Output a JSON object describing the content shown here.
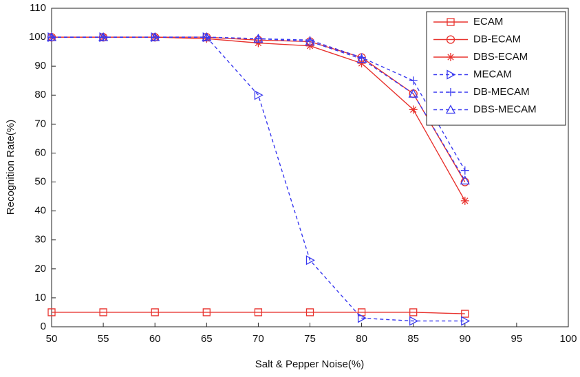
{
  "chart_data": {
    "type": "line",
    "x_label": "Salt & Pepper Noise(%)",
    "y_label": "Recognition Rate(%)",
    "x": [
      50,
      55,
      60,
      65,
      70,
      75,
      80,
      85,
      90
    ],
    "xlim": [
      50,
      100
    ],
    "xticks": [
      50,
      55,
      60,
      65,
      70,
      75,
      80,
      85,
      90,
      95,
      100
    ],
    "ylim": [
      0,
      110
    ],
    "yticks": [
      0,
      10,
      20,
      30,
      40,
      50,
      60,
      70,
      80,
      90,
      100,
      110
    ],
    "legend": "top-right",
    "series": [
      {
        "name": "ECAM",
        "color": "#e8322d",
        "line": "solid",
        "marker": "square",
        "values": [
          5,
          5,
          5,
          5,
          5,
          5,
          5,
          5,
          4.5
        ]
      },
      {
        "name": "DB-ECAM",
        "color": "#e8322d",
        "line": "solid",
        "marker": "circle",
        "values": [
          100,
          100,
          100,
          100,
          99,
          98.5,
          93,
          80.5,
          50
        ]
      },
      {
        "name": "DBS-ECAM",
        "color": "#e8322d",
        "line": "solid",
        "marker": "star",
        "values": [
          100,
          100,
          100,
          99.5,
          98,
          97,
          91,
          75,
          43.5
        ]
      },
      {
        "name": "MECAM",
        "color": "#3a3af0",
        "line": "dashed",
        "marker": "triangle-right",
        "values": [
          100,
          100,
          100,
          100,
          80,
          23,
          3,
          2,
          2
        ]
      },
      {
        "name": "DB-MECAM",
        "color": "#3a3af0",
        "line": "dashed",
        "marker": "plus",
        "values": [
          100,
          100,
          100,
          100,
          99.5,
          99,
          93,
          85,
          54
        ]
      },
      {
        "name": "DBS-MECAM",
        "color": "#3a3af0",
        "line": "dashed",
        "marker": "triangle-up",
        "values": [
          100,
          100,
          100,
          100,
          99.5,
          98.5,
          92.5,
          80.5,
          50.5
        ]
      }
    ]
  }
}
